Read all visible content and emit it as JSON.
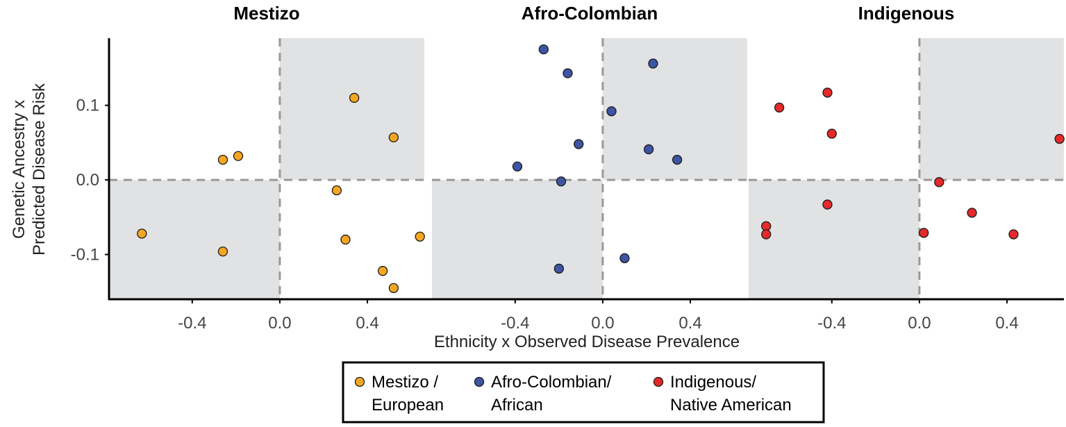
{
  "chart_data": {
    "type": "scatter",
    "xlabel": "Ethnicity x Observed Disease Prevalence",
    "ylabel": [
      "Genetic Ancestry x",
      "Predicted Disease Risk"
    ],
    "xlim": [
      -0.78,
      0.66
    ],
    "ylim": [
      -0.16,
      0.19
    ],
    "x_ticks": [
      -0.4,
      0.0,
      0.4
    ],
    "x_tick_labels": [
      "-0.4",
      "0.0",
      "0.4"
    ],
    "y_ticks": [
      0.1,
      0.0,
      -0.1
    ],
    "y_tick_labels": [
      "0.1",
      "0.0",
      "-0.1"
    ],
    "quadrant_fill": "#e1e2e3",
    "reference_lines": {
      "x": 0.0,
      "y": 0.0,
      "style": "dashed",
      "color": "#999999"
    },
    "panels": [
      {
        "title": "Mestizo",
        "color": "#f5a623",
        "points": [
          {
            "x": 0.34,
            "y": 0.11
          },
          {
            "x": 0.52,
            "y": 0.057
          },
          {
            "x": -0.19,
            "y": 0.032
          },
          {
            "x": -0.26,
            "y": 0.027
          },
          {
            "x": 0.26,
            "y": -0.014
          },
          {
            "x": -0.63,
            "y": -0.072
          },
          {
            "x": 0.3,
            "y": -0.08
          },
          {
            "x": 0.64,
            "y": -0.076
          },
          {
            "x": -0.26,
            "y": -0.096
          },
          {
            "x": 0.47,
            "y": -0.122
          },
          {
            "x": 0.52,
            "y": -0.145
          }
        ]
      },
      {
        "title": "Afro-Colombian",
        "color": "#3d55a3",
        "points": [
          {
            "x": -0.27,
            "y": 0.175
          },
          {
            "x": -0.16,
            "y": 0.143
          },
          {
            "x": 0.23,
            "y": 0.156
          },
          {
            "x": 0.04,
            "y": 0.092
          },
          {
            "x": -0.11,
            "y": 0.048
          },
          {
            "x": 0.21,
            "y": 0.041
          },
          {
            "x": 0.34,
            "y": 0.027
          },
          {
            "x": -0.39,
            "y": 0.018
          },
          {
            "x": -0.19,
            "y": -0.002
          },
          {
            "x": 0.1,
            "y": -0.105
          },
          {
            "x": -0.2,
            "y": -0.119
          }
        ]
      },
      {
        "title": "Indigenous",
        "color": "#e42a2a",
        "points": [
          {
            "x": -0.42,
            "y": 0.117
          },
          {
            "x": -0.64,
            "y": 0.097
          },
          {
            "x": -0.4,
            "y": 0.062
          },
          {
            "x": 0.64,
            "y": 0.055
          },
          {
            "x": 0.09,
            "y": -0.003
          },
          {
            "x": -0.42,
            "y": -0.033
          },
          {
            "x": 0.24,
            "y": -0.044
          },
          {
            "x": -0.7,
            "y": -0.062
          },
          {
            "x": -0.7,
            "y": -0.073
          },
          {
            "x": 0.02,
            "y": -0.071
          },
          {
            "x": 0.43,
            "y": -0.073
          }
        ]
      }
    ],
    "legend": {
      "placement": "bottom-center",
      "entries": [
        {
          "label_lines": [
            "Mestizo /",
            "European"
          ],
          "color": "#f5a623"
        },
        {
          "label_lines": [
            "Afro-Colombian/",
            "African"
          ],
          "color": "#3d55a3"
        },
        {
          "label_lines": [
            "Indigenous/",
            "Native American"
          ],
          "color": "#e42a2a"
        }
      ]
    }
  }
}
